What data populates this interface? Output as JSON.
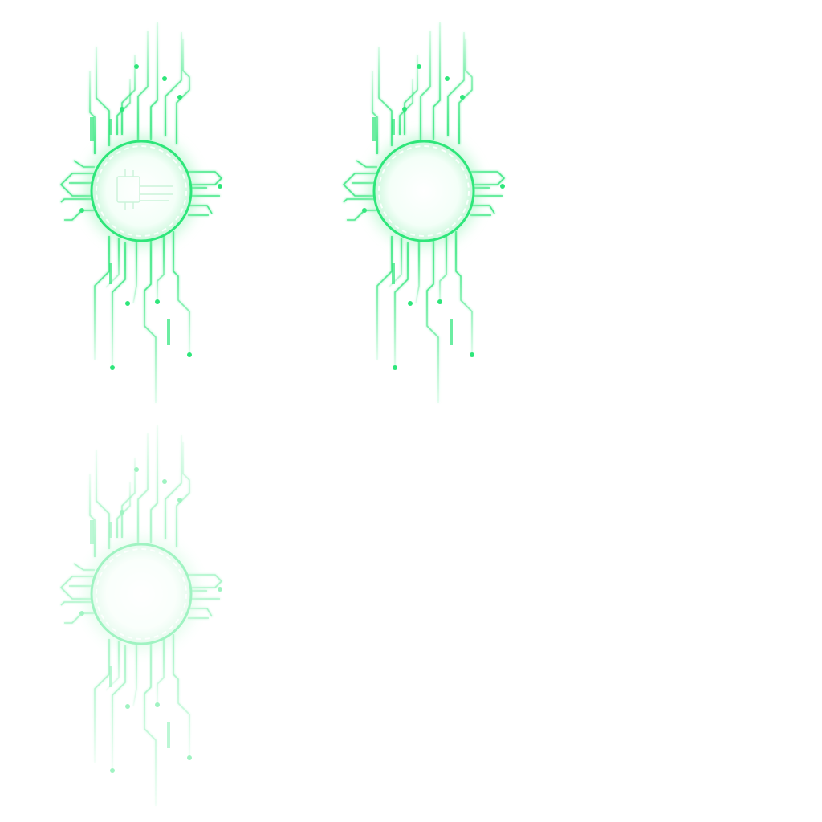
{
  "sprite_sheet": {
    "accent": "#2ee67a",
    "glow": "#8ff5b4",
    "core_fill": "#ffffff",
    "frames": [
      {
        "name": "circuit-node-active",
        "icon": "circuit-chip-icon",
        "opacity": 1.0,
        "show_chip": true
      },
      {
        "name": "circuit-node-idle",
        "icon": "circuit-ring-icon",
        "opacity": 1.0,
        "show_chip": false
      },
      {
        "name": "circuit-node-faded",
        "icon": "circuit-ring-icon",
        "opacity": 0.45,
        "show_chip": false
      }
    ]
  }
}
